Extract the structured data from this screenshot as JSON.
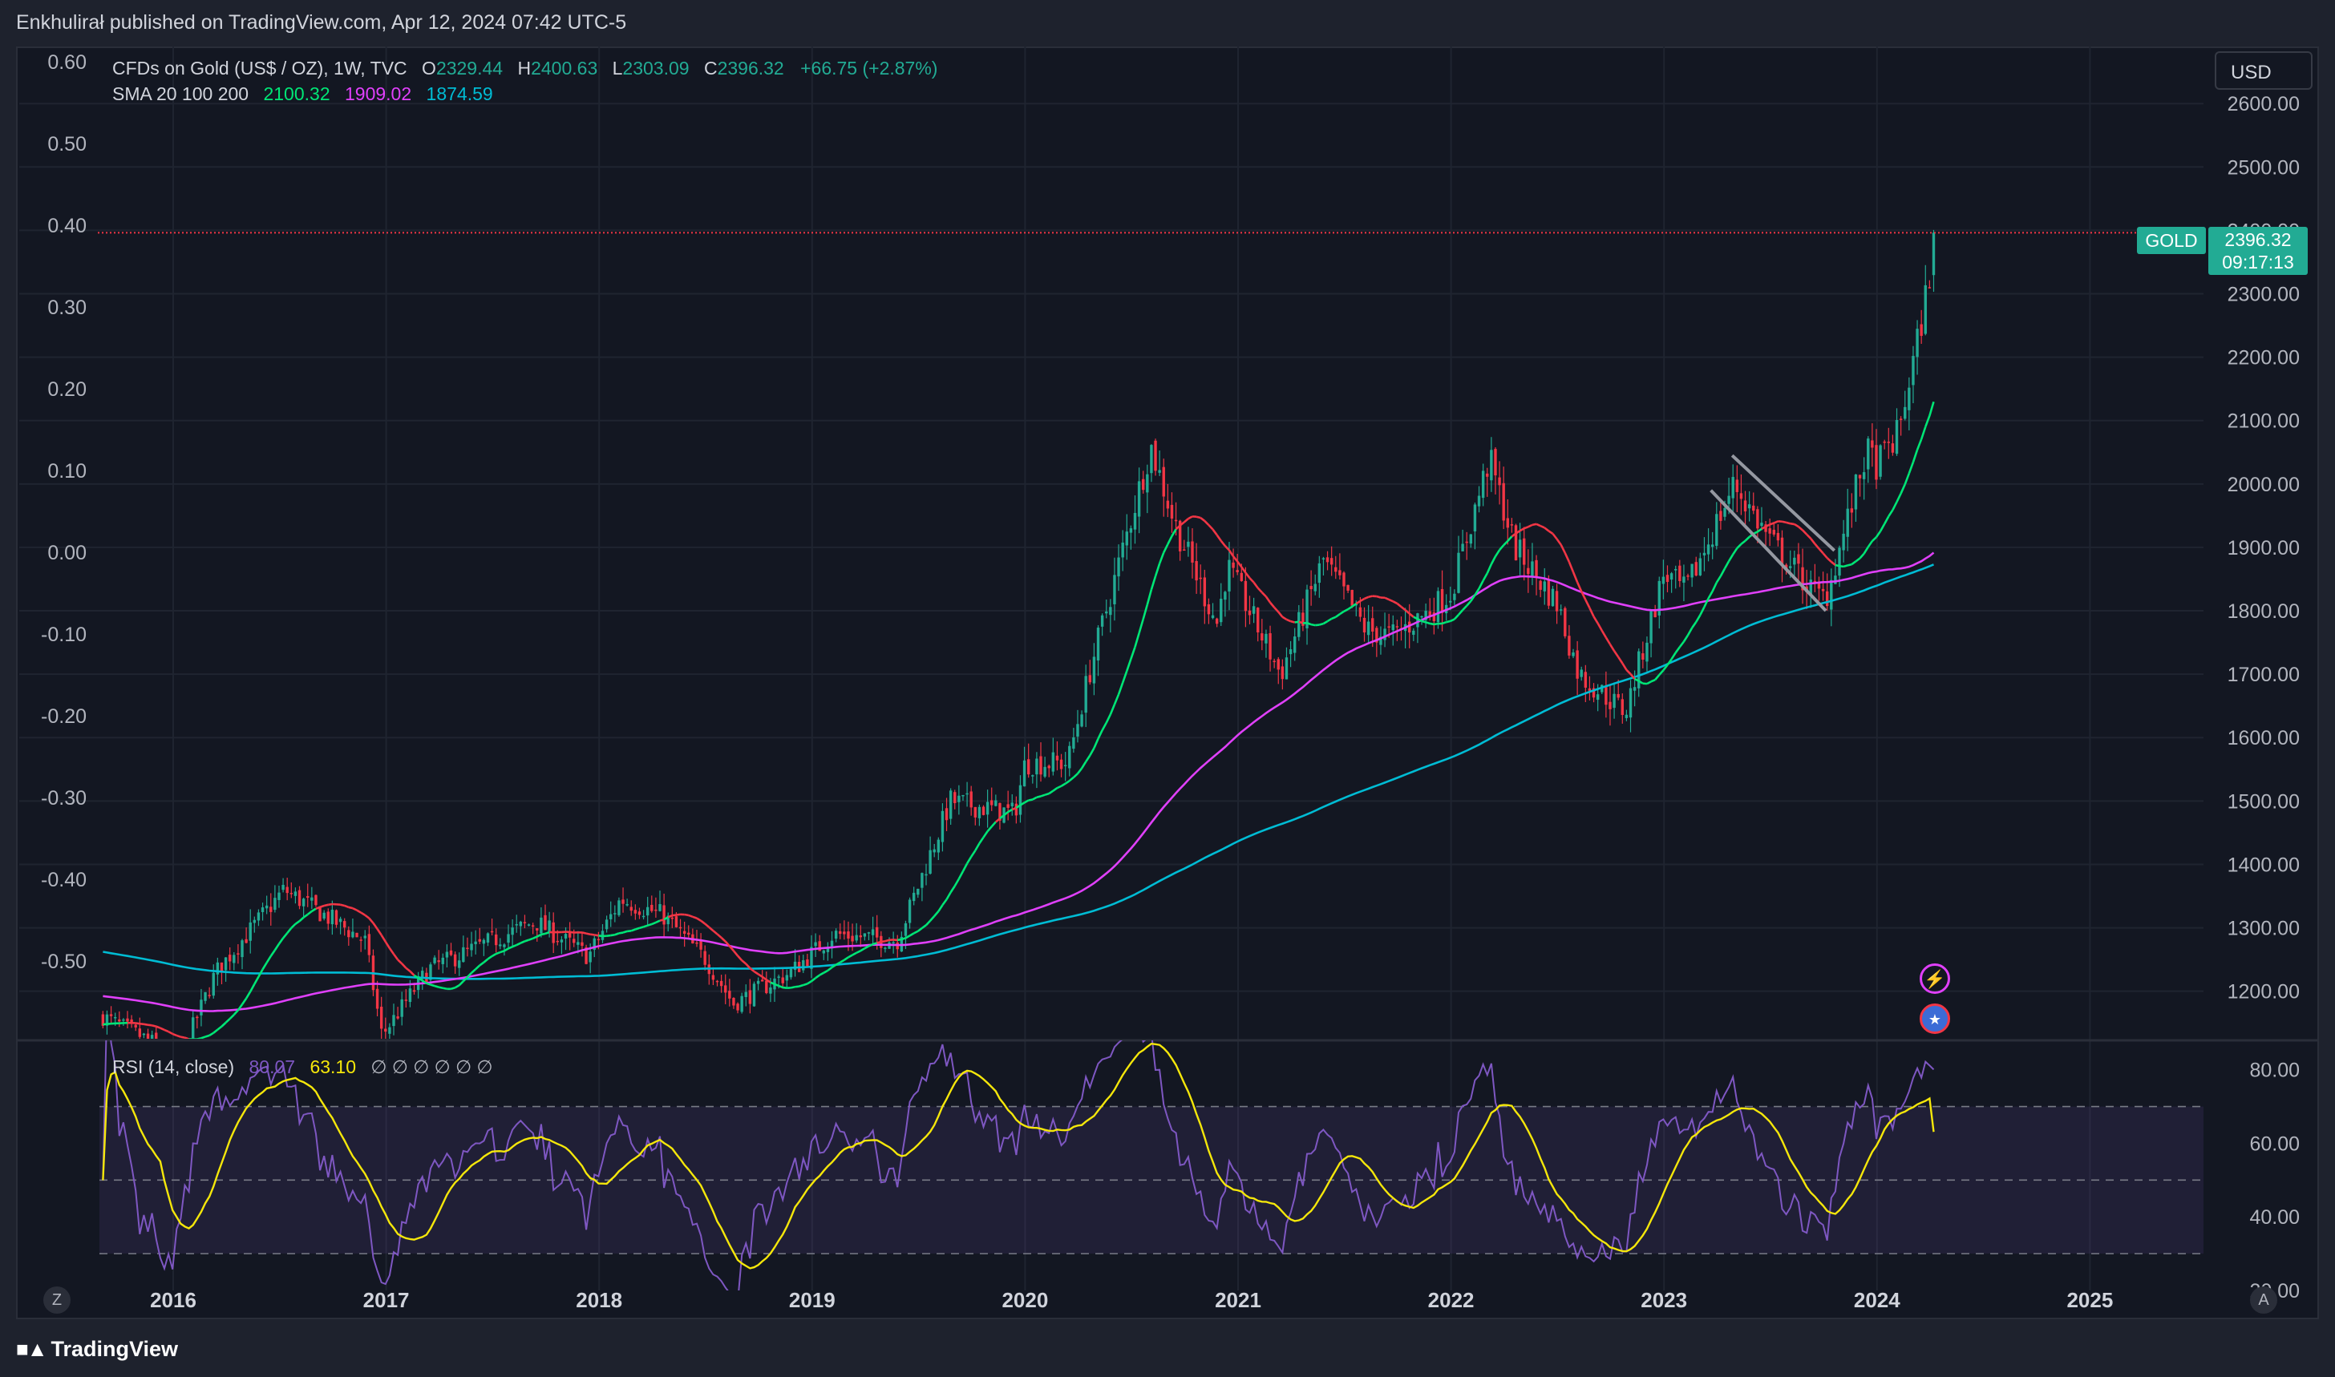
{
  "header": {
    "publisher_line": "Enkhulirał published on TradingView.com, Apr 12, 2024 07:42 UTC-5"
  },
  "legend": {
    "symbol": "CFDs on Gold (US$ / OZ), 1W, TVC",
    "o_label": "O",
    "o_value": "2329.44",
    "h_label": "H",
    "h_value": "2400.63",
    "l_label": "L",
    "l_value": "2303.09",
    "c_label": "C",
    "c_value": "2396.32",
    "change": "+66.75 (+2.87%)",
    "sma_label": "SMA 20 100 200",
    "sma20": "2100.32",
    "sma100": "1909.02",
    "sma200": "1874.59",
    "rsi_label": "RSI (14, close)",
    "rsi_value": "80.07",
    "rsi_ma": "63.10",
    "rsi_extra": "∅ ∅ ∅ ∅ ∅ ∅"
  },
  "currency_button": "USD",
  "last_price": {
    "symbol_tag": "GOLD",
    "price": "2396.32",
    "countdown": "09:17:13"
  },
  "footer": {
    "logo_text": "TradingView",
    "left_button": "Z",
    "right_button": "A"
  },
  "colors": {
    "up": "#22ab94",
    "down": "#f23645",
    "sma20": "#00e676",
    "sma100": "#e040fb",
    "sma200": "#00bcd4",
    "rsi": "#7e57c2",
    "rsi_ma": "#f5e70a",
    "background": "#131722"
  },
  "icons": [
    "lightning-event-icon",
    "us-flag-event-icon"
  ],
  "chart_data": [
    {
      "type": "candlestick",
      "title": "CFDs on Gold (US$ / OZ), 1W, TVC",
      "x_axis": {
        "ticks": [
          "2016",
          "2017",
          "2018",
          "2019",
          "2020",
          "2021",
          "2022",
          "2023",
          "2024",
          "2025"
        ]
      },
      "y_axis_right": {
        "ticks": [
          "2600.00",
          "2500.00",
          "2400.00",
          "2300.00",
          "2200.00",
          "2100.00",
          "2000.00",
          "1900.00",
          "1800.00",
          "1700.00",
          "1600.00",
          "1500.00",
          "1400.00",
          "1300.00",
          "1200.00"
        ],
        "range": [
          1125,
          2690
        ]
      },
      "y_axis_left": {
        "ticks": [
          "0.60",
          "0.50",
          "0.40",
          "0.30",
          "0.20",
          "0.10",
          "0.00",
          "-0.10",
          "-0.20",
          "-0.30",
          "-0.40",
          "-0.50"
        ]
      },
      "price_path": {
        "description_free": true,
        "dates": [
          2015.67,
          2015.9,
          2016.0,
          2016.2,
          2016.52,
          2016.9,
          2016.98,
          2017.2,
          2017.7,
          2017.95,
          2018.1,
          2018.3,
          2018.5,
          2018.63,
          2018.9,
          2019.1,
          2019.4,
          2019.65,
          2019.95,
          2020.0,
          2020.2,
          2020.3,
          2020.59,
          2020.7,
          2020.9,
          2020.95,
          2021.2,
          2021.4,
          2021.6,
          2021.72,
          2021.9,
          2022.0,
          2022.18,
          2022.3,
          2022.5,
          2022.6,
          2022.82,
          2023.0,
          2023.1,
          2023.33,
          2023.5,
          2023.7,
          2023.76,
          2023.95,
          2024.0,
          2024.1,
          2024.2,
          2024.28
        ],
        "prices": [
          1160,
          1120,
          1070,
          1230,
          1360,
          1280,
          1130,
          1235,
          1310,
          1255,
          1345,
          1320,
          1250,
          1180,
          1230,
          1290,
          1280,
          1500,
          1480,
          1560,
          1560,
          1700,
          2060,
          1940,
          1780,
          1870,
          1700,
          1880,
          1770,
          1760,
          1800,
          1830,
          2040,
          1900,
          1810,
          1700,
          1640,
          1860,
          1830,
          2000,
          1910,
          1830,
          1820,
          2050,
          2030,
          2080,
          2240,
          2396
        ]
      },
      "sma": [
        {
          "name": "SMA 20",
          "last": 2100.32
        },
        {
          "name": "SMA 100",
          "last": 1909.02
        },
        {
          "name": "SMA 200",
          "last": 1874.59
        }
      ],
      "last_price": 2396.32
    },
    {
      "type": "line",
      "title": "RSI (14, close)",
      "y_axis": {
        "ticks": [
          "80.00",
          "60.00",
          "40.00",
          "20.00"
        ],
        "range": [
          20,
          88
        ]
      },
      "bands": [
        70,
        50,
        30
      ],
      "series": [
        {
          "name": "RSI",
          "last": 80.07
        },
        {
          "name": "RSI-based MA",
          "last": 63.1
        }
      ]
    }
  ]
}
